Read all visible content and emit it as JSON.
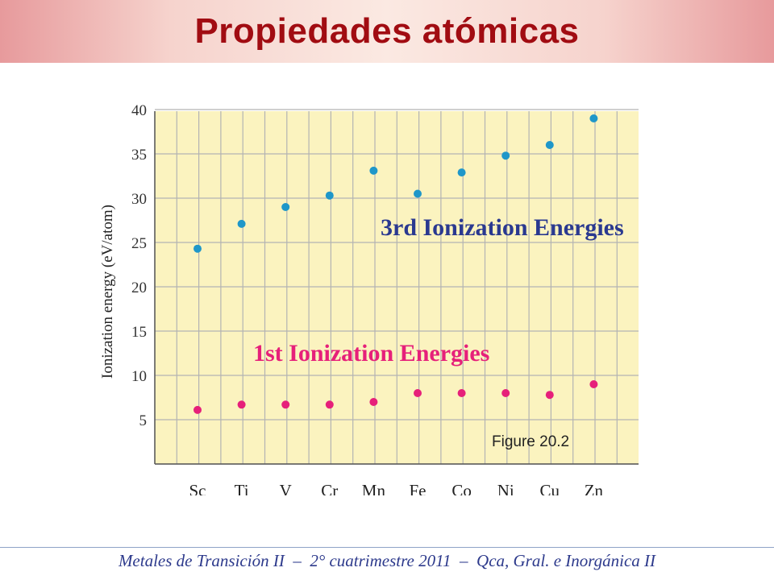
{
  "slide": {
    "title": "Propiedades atómicas",
    "footer": "Metales de Transición II  –  2° cuatrimestre 2011  –  Qca, Gral. e Inorgánica II"
  },
  "colors": {
    "title": "#a10c12",
    "plot_bg": "#fbf3bf",
    "grid": "#b3b3b3",
    "annotation": "#2a3990",
    "third_series": "#1f97c9",
    "first_series": "#e6207a",
    "footer": "#2d3a8c"
  },
  "chart_data": {
    "type": "scatter",
    "categories": [
      "Sc",
      "Ti",
      "V",
      "Cr",
      "Mn",
      "Fe",
      "Co",
      "Ni",
      "Cu",
      "Zn"
    ],
    "ylabel": "Ionization energy (eV/atom)",
    "xlabel": "",
    "ylim": [
      0,
      40
    ],
    "yticks": [
      5,
      10,
      15,
      20,
      25,
      30,
      35,
      40
    ],
    "grid": true,
    "series": [
      {
        "name": "3rd Ionization Energies",
        "values": [
          24.3,
          27.1,
          29.0,
          30.3,
          33.1,
          30.5,
          32.9,
          34.8,
          36.0,
          39.0
        ]
      },
      {
        "name": "1st Ionization Energies",
        "values": [
          6.1,
          6.7,
          6.7,
          6.7,
          7.0,
          8.0,
          8.0,
          8.0,
          7.8,
          9.0
        ]
      }
    ],
    "annotations": [
      "Figure 20.2"
    ]
  }
}
